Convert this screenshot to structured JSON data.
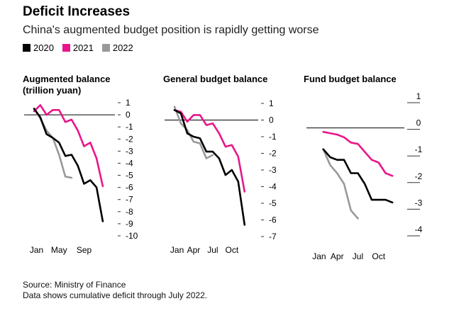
{
  "title": "Deficit Increases",
  "subtitle": "China's augmented budget position is rapidly getting worse",
  "source": "Source: Ministry of Finance",
  "note": "Data shows cumulative deficit through July 2022.",
  "colors": {
    "2020": "#000000",
    "2021": "#e8168b",
    "2022": "#999999",
    "zero_line": "#000000",
    "tick": "#333333"
  },
  "chart_data": [
    {
      "type": "line",
      "title": "Augmented balance (trillion yuan)",
      "title_lines": [
        "Augmented balance",
        "(trillion yuan)"
      ],
      "legend": [
        "2020",
        "2021",
        "2022"
      ],
      "ylim": [
        -10,
        1
      ],
      "yticks": [
        1,
        0,
        -1,
        -2,
        -3,
        -4,
        -5,
        -6,
        -7,
        -8,
        -9,
        -10
      ],
      "ytick_labels": [
        "1",
        "0",
        "-1",
        "-2",
        "-3",
        "-4",
        "-5",
        "-6",
        "-7",
        "-8",
        "-9",
        "-10"
      ],
      "xlim": [
        1,
        12.8
      ],
      "xticks": [
        1.4,
        5,
        9
      ],
      "xtick_labels": [
        "Jan",
        "May",
        "Sep"
      ],
      "series": [
        {
          "name": "2020",
          "x": [
            1,
            2,
            3,
            4,
            5,
            6,
            7,
            8,
            9,
            10,
            11,
            12
          ],
          "values": [
            0.5,
            -0.2,
            -1.6,
            -1.9,
            -2.3,
            -3.4,
            -3.3,
            -4.2,
            -5.7,
            -5.4,
            -6.0,
            -8.8
          ]
        },
        {
          "name": "2021",
          "x": [
            1,
            2,
            3,
            4,
            5,
            6,
            7,
            8,
            9,
            10,
            11,
            12
          ],
          "values": [
            0.3,
            0.8,
            0.0,
            0.4,
            0.4,
            -0.6,
            -0.4,
            -1.3,
            -2.6,
            -2.3,
            -3.6,
            -5.9
          ]
        },
        {
          "name": "2022",
          "x": [
            1,
            2,
            3,
            4,
            5,
            6,
            7
          ],
          "values": [
            0.5,
            -0.3,
            -1.3,
            -1.9,
            -3.3,
            -5.1,
            -5.2
          ]
        }
      ]
    },
    {
      "type": "line",
      "title": "General budget balance",
      "title_lines": [
        "General budget balance"
      ],
      "ylim": [
        -7,
        1
      ],
      "yticks": [
        1,
        0,
        -1,
        -2,
        -3,
        -4,
        -5,
        -6,
        -7
      ],
      "ytick_labels": [
        "1",
        "0",
        "-1",
        "-2",
        "-3",
        "-4",
        "-5",
        "-6",
        "-7"
      ],
      "xlim": [
        1,
        12.8
      ],
      "xticks": [
        1.4,
        4,
        7,
        10
      ],
      "xtick_labels": [
        "Jan",
        "Apr",
        "Jul",
        "Oct"
      ],
      "series": [
        {
          "name": "2020",
          "x": [
            1,
            2,
            3,
            4,
            5,
            6,
            7,
            8,
            9,
            10,
            11,
            12
          ],
          "values": [
            0.6,
            0.4,
            -0.8,
            -1.0,
            -1.1,
            -1.9,
            -1.9,
            -2.3,
            -3.3,
            -3.0,
            -3.7,
            -6.3
          ]
        },
        {
          "name": "2021",
          "x": [
            1,
            2,
            3,
            4,
            5,
            6,
            7,
            8,
            9,
            10,
            11,
            12
          ],
          "values": [
            0.6,
            0.5,
            -0.1,
            0.3,
            0.3,
            -0.3,
            -0.2,
            -0.8,
            -1.6,
            -1.5,
            -2.2,
            -4.3
          ]
        },
        {
          "name": "2022",
          "x": [
            1,
            2,
            3,
            4,
            5,
            6,
            7
          ],
          "values": [
            0.8,
            -0.2,
            -0.6,
            -1.3,
            -1.4,
            -2.3,
            -2.1
          ]
        }
      ]
    },
    {
      "type": "line",
      "title": "Fund budget balance",
      "title_lines": [
        "Fund budget balance"
      ],
      "ylim": [
        -4,
        1
      ],
      "yticks": [
        1,
        0,
        -1,
        -2,
        -3,
        -4
      ],
      "ytick_labels": [
        "1",
        "0",
        "-1",
        "-2",
        "-3",
        "-4"
      ],
      "xlim": [
        1,
        12.8
      ],
      "xticks": [
        1.4,
        4,
        7,
        10
      ],
      "xtick_labels": [
        "Jan",
        "Apr",
        "Jul",
        "Oct"
      ],
      "series": [
        {
          "name": "2020",
          "x": [
            2,
            3,
            4,
            5,
            6,
            7,
            8,
            9,
            10,
            11,
            12
          ],
          "values": [
            -0.8,
            -1.1,
            -1.2,
            -1.2,
            -1.7,
            -1.7,
            -2.1,
            -2.7,
            -2.7,
            -2.7,
            -2.8
          ]
        },
        {
          "name": "2021",
          "x": [
            2,
            3,
            4,
            5,
            6,
            7,
            8,
            9,
            10,
            11,
            12
          ],
          "values": [
            -0.15,
            -0.2,
            -0.25,
            -0.35,
            -0.55,
            -0.6,
            -0.9,
            -1.2,
            -1.3,
            -1.7,
            -1.8
          ]
        },
        {
          "name": "2022",
          "x": [
            2,
            3,
            4,
            5,
            6,
            7
          ],
          "values": [
            -0.8,
            -1.4,
            -1.7,
            -2.1,
            -3.1,
            -3.4
          ]
        }
      ]
    }
  ]
}
